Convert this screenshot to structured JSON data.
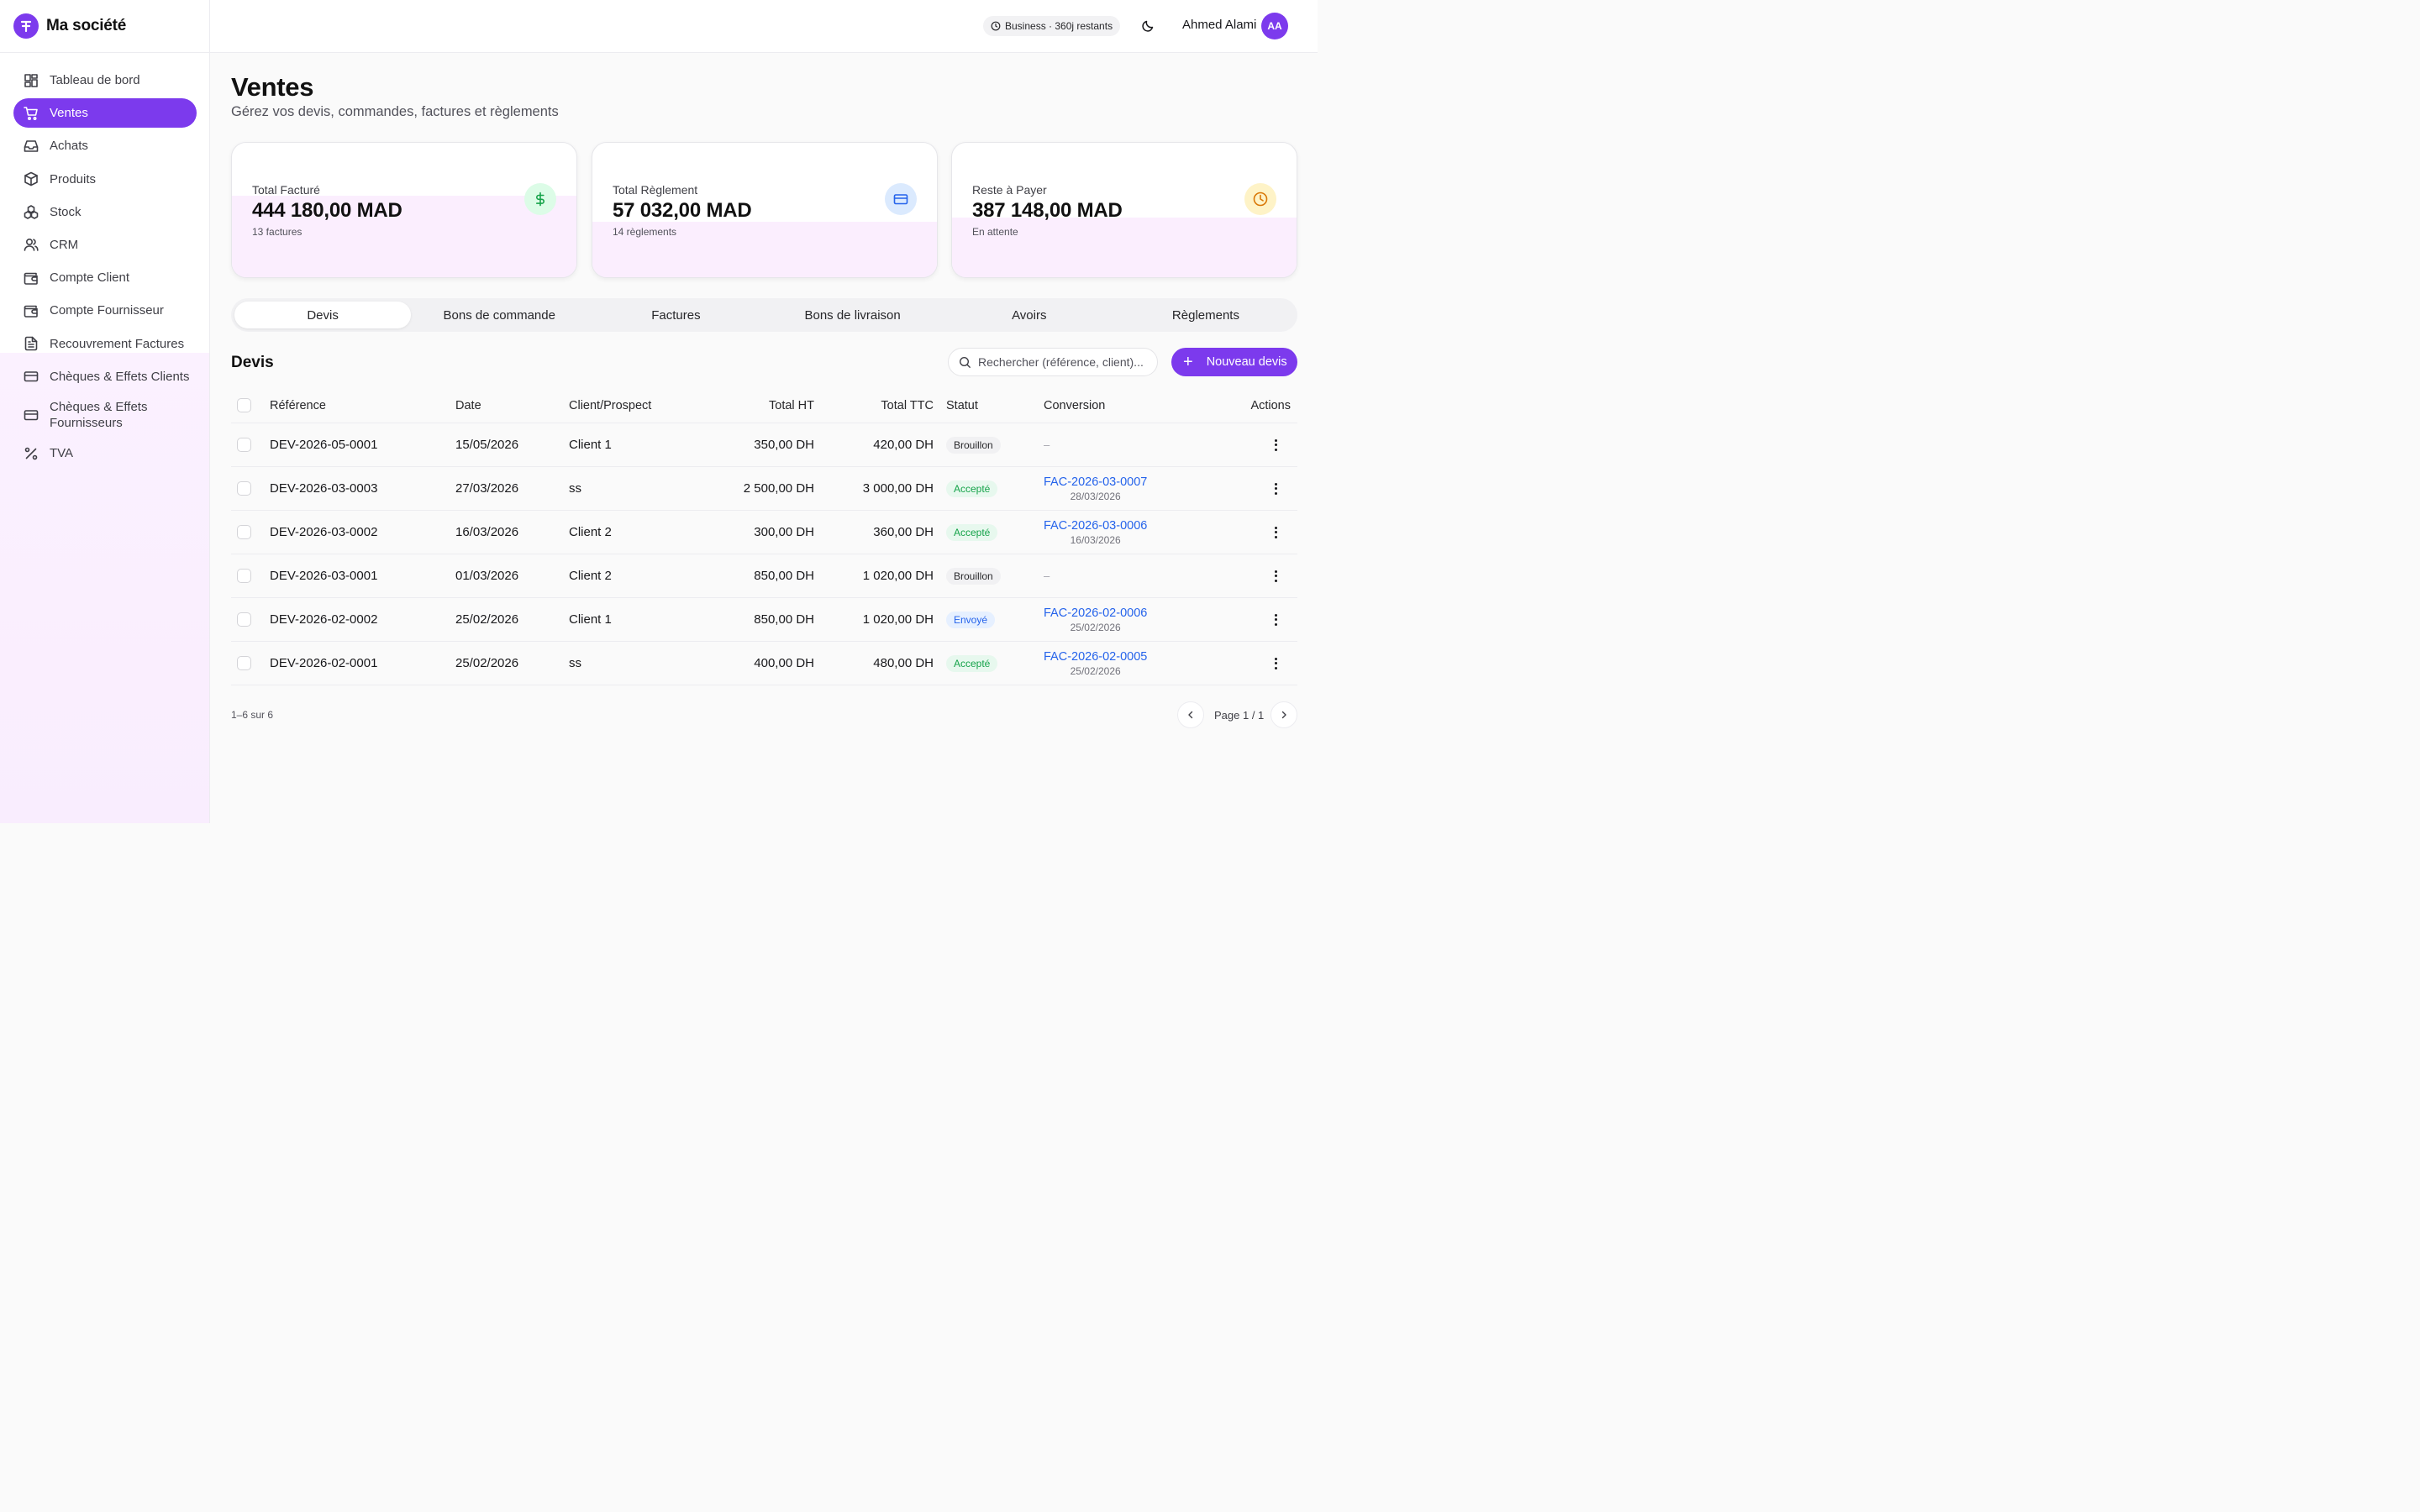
{
  "brand": {
    "name": "Ma société"
  },
  "sidebar": {
    "items": [
      {
        "label": "Tableau de bord",
        "icon": "dashboard-icon"
      },
      {
        "label": "Ventes",
        "icon": "cart-icon",
        "active": true
      },
      {
        "label": "Achats",
        "icon": "inbox-icon"
      },
      {
        "label": "Produits",
        "icon": "box-icon"
      },
      {
        "label": "Stock",
        "icon": "boxes-icon"
      },
      {
        "label": "CRM",
        "icon": "users-icon"
      },
      {
        "label": "Compte Client",
        "icon": "wallet-icon"
      },
      {
        "label": "Compte Fournisseur",
        "icon": "wallet-icon"
      },
      {
        "label": "Recouvrement Factures",
        "icon": "file-text-icon"
      },
      {
        "label": "Chèques & Effets Clients",
        "icon": "credit-card-icon"
      },
      {
        "label": "Chèques & Effets Fournisseurs",
        "icon": "credit-card-icon"
      },
      {
        "label": "TVA",
        "icon": "percent-icon"
      }
    ]
  },
  "header": {
    "plan_badge": "Business · 360j restants",
    "user_name": "Ahmed Alami",
    "avatar_initials": "AA"
  },
  "page": {
    "title": "Ventes",
    "subtitle": "Gérez vos devis, commandes, factures et règlements"
  },
  "stats": [
    {
      "label": "Total Facturé",
      "value": "444 180,00 MAD",
      "meta": "13 factures",
      "icon": "dollar-icon",
      "icon_bg": "#dcfce7",
      "icon_color": "#16a34a",
      "fill_fraction": 0.6
    },
    {
      "label": "Total Règlement",
      "value": "57 032,00 MAD",
      "meta": "14 règlements",
      "icon": "credit-card-icon",
      "icon_bg": "#dbeafe",
      "icon_color": "#2563eb",
      "fill_fraction": 0.41
    },
    {
      "label": "Reste à Payer",
      "value": "387 148,00 MAD",
      "meta": "En attente",
      "icon": "clock-icon",
      "icon_bg": "#fef3c7",
      "icon_color": "#d97706",
      "fill_fraction": 0.44
    }
  ],
  "tabs": [
    "Devis",
    "Bons de commande",
    "Factures",
    "Bons de livraison",
    "Avoirs",
    "Règlements"
  ],
  "section": {
    "title": "Devis",
    "search_placeholder": "Rechercher (référence, client)...",
    "new_button": "Nouveau devis"
  },
  "table": {
    "headers": {
      "ref": "Référence",
      "date": "Date",
      "client": "Client/Prospect",
      "ht": "Total HT",
      "ttc": "Total TTC",
      "status": "Statut",
      "conversion": "Conversion",
      "actions": "Actions"
    },
    "rows": [
      {
        "ref": "DEV-2026-05-0001",
        "date": "15/05/2026",
        "client": "Client 1",
        "ht": "350,00 DH",
        "ttc": "420,00 DH",
        "status": "Brouillon",
        "status_kind": "draft",
        "conv_ref": "",
        "conv_date": "",
        "conv_empty": "–"
      },
      {
        "ref": "DEV-2026-03-0003",
        "date": "27/03/2026",
        "client": "ss",
        "ht": "2 500,00 DH",
        "ttc": "3 000,00 DH",
        "status": "Accepté",
        "status_kind": "ok",
        "conv_ref": "FAC-2026-03-0007",
        "conv_date": "28/03/2026",
        "conv_empty": ""
      },
      {
        "ref": "DEV-2026-03-0002",
        "date": "16/03/2026",
        "client": "Client 2",
        "ht": "300,00 DH",
        "ttc": "360,00 DH",
        "status": "Accepté",
        "status_kind": "ok",
        "conv_ref": "FAC-2026-03-0006",
        "conv_date": "16/03/2026",
        "conv_empty": ""
      },
      {
        "ref": "DEV-2026-03-0001",
        "date": "01/03/2026",
        "client": "Client 2",
        "ht": "850,00 DH",
        "ttc": "1 020,00 DH",
        "status": "Brouillon",
        "status_kind": "draft",
        "conv_ref": "",
        "conv_date": "",
        "conv_empty": "–"
      },
      {
        "ref": "DEV-2026-02-0002",
        "date": "25/02/2026",
        "client": "Client 1",
        "ht": "850,00 DH",
        "ttc": "1 020,00 DH",
        "status": "Envoyé",
        "status_kind": "sent",
        "conv_ref": "FAC-2026-02-0006",
        "conv_date": "25/02/2026",
        "conv_empty": ""
      },
      {
        "ref": "DEV-2026-02-0001",
        "date": "25/02/2026",
        "client": "ss",
        "ht": "400,00 DH",
        "ttc": "480,00 DH",
        "status": "Accepté",
        "status_kind": "ok",
        "conv_ref": "FAC-2026-02-0005",
        "conv_date": "25/02/2026",
        "conv_empty": ""
      }
    ]
  },
  "pagination": {
    "count_text": "1–6 sur 6",
    "page_text": "Page 1 / 1"
  }
}
